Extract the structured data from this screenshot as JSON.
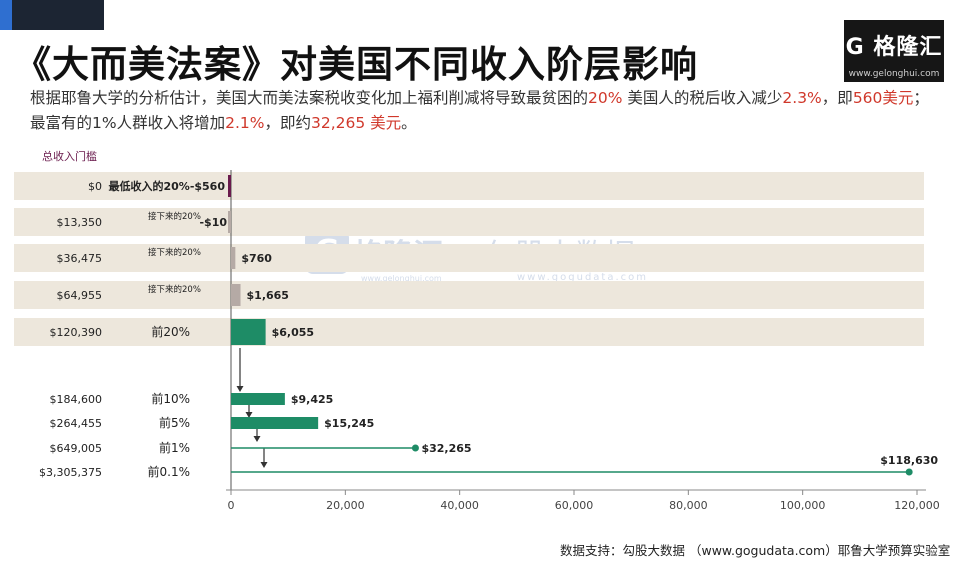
{
  "header": {
    "title": "《大而美法案》对美国不同收入阶层影响",
    "subtitle_parts": [
      {
        "text": "根据耶鲁大学的分析估计，美国大而美法案税收变化加上福利削减将导致最贫困的",
        "hl": false
      },
      {
        "text": "20%",
        "hl": true
      },
      {
        "text": " 美国人的税后收入减少",
        "hl": false
      },
      {
        "text": "2.3%",
        "hl": true
      },
      {
        "text": "，即",
        "hl": false
      },
      {
        "text": "560美元",
        "hl": true
      },
      {
        "text": "；最富有的1%人群收入将增加",
        "hl": false
      },
      {
        "text": "2.1%",
        "hl": true
      },
      {
        "text": "，即约",
        "hl": false
      },
      {
        "text": "32,265 美元",
        "hl": true
      },
      {
        "text": "。",
        "hl": false
      }
    ]
  },
  "brand": {
    "name": "格隆汇",
    "url": "www.gelonghui.com",
    "mark": "G"
  },
  "watermark": {
    "mark": "G",
    "name": "格隆汇",
    "url": "www.gelonghui.com",
    "name2": "勾股大数据",
    "url2": "www.gogudata.com"
  },
  "source": "数据支持：勾股大数据 （www.gogudata.com）耶鲁大学预算实验室",
  "colors": {
    "highlight": "#d0382b",
    "band": "#ede7dc",
    "bottom": "#6a1b4d",
    "middle": "#b5aaa5",
    "top": "#1e8c66"
  },
  "chart_data": {
    "type": "bar",
    "orientation": "horizontal",
    "column_header": "总收入门槛",
    "xlim": [
      -3000,
      120000
    ],
    "xticks": [
      0,
      20000,
      40000,
      60000,
      80000,
      100000,
      120000
    ],
    "xtick_labels": [
      "0",
      "20,000",
      "40,000",
      "60,000",
      "80,000",
      "100,000",
      "120,000"
    ],
    "rows": [
      {
        "threshold": "$0",
        "group": "最低收入的20%",
        "value": -560,
        "value_label": "-$560",
        "color_key": "bottom",
        "banded": true
      },
      {
        "threshold": "$13,350",
        "group": "接下来的20%",
        "value": -10,
        "value_label": "-$10",
        "color_key": "middle",
        "banded": true
      },
      {
        "threshold": "$36,475",
        "group": "接下来的20%",
        "value": 760,
        "value_label": "$760",
        "color_key": "middle",
        "banded": true
      },
      {
        "threshold": "$64,955",
        "group": "接下来的20%",
        "value": 1665,
        "value_label": "$1,665",
        "color_key": "middle",
        "banded": true
      },
      {
        "threshold": "$120,390",
        "group": "前20%",
        "value": 6055,
        "value_label": "$6,055",
        "color_key": "top",
        "banded": true
      },
      {
        "threshold": "$184,600",
        "group": "前10%",
        "value": 9425,
        "value_label": "$9,425",
        "color_key": "top",
        "banded": false
      },
      {
        "threshold": "$264,455",
        "group": "前5%",
        "value": 15245,
        "value_label": "$15,245",
        "color_key": "top",
        "banded": false
      },
      {
        "threshold": "$649,005",
        "group": "前1%",
        "value": 32265,
        "value_label": "$32,265",
        "color_key": "top",
        "banded": false,
        "style": "lollipop"
      },
      {
        "threshold": "$3,305,375",
        "group": "前0.1%",
        "value": 118630,
        "value_label": "$118,630",
        "color_key": "top",
        "banded": false,
        "style": "lollipop"
      }
    ]
  }
}
